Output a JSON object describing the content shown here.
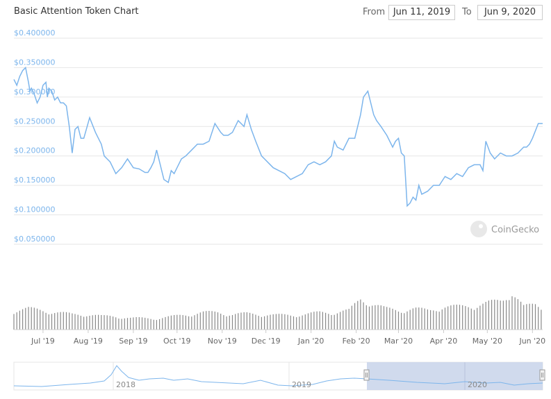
{
  "header": {
    "title": "Basic Attention Token Chart",
    "from_label": "From",
    "from_value": "Jun 11, 2019",
    "to_label": "To",
    "to_value": "Jun 9, 2020"
  },
  "watermark": {
    "text": "CoinGecko",
    "icon": "gecko-logo-icon"
  },
  "colors": {
    "line": "#7cb5ec",
    "volume": "#888888",
    "grid": "#e6e6e6",
    "navigator_mask": "#c8d3ea"
  },
  "chart_data": {
    "type": "line",
    "title": "Basic Attention Token Chart",
    "x_range": [
      "Jun 11, 2019",
      "Jun 9, 2020"
    ],
    "ylim": [
      0.05,
      0.4
    ],
    "y_ticks": [
      "$0.400000",
      "$0.350000",
      "$0.300000",
      "$0.250000",
      "$0.200000",
      "$0.150000",
      "$0.100000",
      "$0.050000"
    ],
    "y_tick_values": [
      0.4,
      0.35,
      0.3,
      0.25,
      0.2,
      0.15,
      0.1,
      0.05
    ],
    "x_ticks": [
      "Jul '19",
      "Aug '19",
      "Sep '19",
      "Oct '19",
      "Nov '19",
      "Dec '19",
      "Jan '20",
      "Feb '20",
      "Mar '20",
      "Apr '20",
      "May '20",
      "Jun '20"
    ],
    "x_tick_days": [
      20,
      51,
      82,
      112,
      143,
      173,
      204,
      235,
      264,
      295,
      325,
      356
    ],
    "grid": true,
    "series": [
      {
        "day": [
          0,
          2,
          4,
          6,
          8,
          10,
          11,
          12,
          14,
          16,
          18,
          20,
          22,
          23,
          24,
          26,
          28,
          30,
          32,
          34,
          36,
          38,
          40,
          42,
          44,
          46,
          48,
          52,
          56,
          58,
          60,
          62,
          64,
          66,
          70,
          74,
          78,
          82,
          86,
          90,
          92,
          94,
          96,
          98,
          100,
          103,
          106,
          108,
          110,
          112,
          115,
          118,
          122,
          126,
          130,
          134,
          138,
          142,
          144,
          147,
          150,
          154,
          158,
          160,
          163,
          166,
          170,
          174,
          178,
          182,
          186,
          190,
          194,
          198,
          202,
          206,
          210,
          214,
          218,
          220,
          222,
          226,
          230,
          234,
          238,
          240,
          243,
          245,
          247,
          249,
          252,
          256,
          260,
          262,
          264,
          266,
          268,
          270,
          272,
          274,
          276,
          278,
          280,
          284,
          288,
          292,
          296,
          300,
          304,
          308,
          312,
          316,
          320,
          322,
          324,
          327,
          330,
          334,
          338,
          342,
          346,
          350,
          352,
          354,
          356,
          360,
          363
        ],
        "values": [
          0.33,
          0.32,
          0.335,
          0.345,
          0.35,
          0.325,
          0.31,
          0.315,
          0.305,
          0.29,
          0.3,
          0.32,
          0.325,
          0.3,
          0.315,
          0.31,
          0.295,
          0.3,
          0.29,
          0.29,
          0.285,
          0.25,
          0.205,
          0.245,
          0.25,
          0.23,
          0.23,
          0.265,
          0.24,
          0.23,
          0.22,
          0.2,
          0.195,
          0.19,
          0.17,
          0.18,
          0.195,
          0.18,
          0.178,
          0.172,
          0.172,
          0.18,
          0.19,
          0.21,
          0.19,
          0.16,
          0.155,
          0.175,
          0.17,
          0.18,
          0.195,
          0.2,
          0.21,
          0.22,
          0.22,
          0.225,
          0.255,
          0.24,
          0.235,
          0.235,
          0.24,
          0.26,
          0.25,
          0.27,
          0.245,
          0.225,
          0.2,
          0.19,
          0.18,
          0.175,
          0.17,
          0.16,
          0.165,
          0.17,
          0.185,
          0.19,
          0.185,
          0.19,
          0.2,
          0.225,
          0.215,
          0.21,
          0.23,
          0.23,
          0.27,
          0.3,
          0.31,
          0.29,
          0.27,
          0.26,
          0.25,
          0.235,
          0.215,
          0.225,
          0.23,
          0.205,
          0.2,
          0.115,
          0.12,
          0.13,
          0.125,
          0.15,
          0.135,
          0.14,
          0.15,
          0.15,
          0.165,
          0.16,
          0.17,
          0.165,
          0.18,
          0.185,
          0.185,
          0.175,
          0.225,
          0.205,
          0.195,
          0.205,
          0.2,
          0.2,
          0.205,
          0.215,
          0.215,
          0.22,
          0.23,
          0.255,
          0.255
        ]
      }
    ],
    "volume": {
      "day": [
        0,
        10,
        20,
        30,
        40,
        50,
        60,
        70,
        80,
        90,
        100,
        110,
        120,
        130,
        140,
        150,
        160,
        170,
        180,
        190,
        200,
        210,
        220,
        230,
        238,
        245,
        255,
        265,
        275,
        285,
        295,
        305,
        315,
        325,
        335,
        342,
        350,
        358,
        363
      ],
      "values": [
        0.5,
        0.55,
        0.5,
        0.45,
        0.4,
        0.4,
        0.35,
        0.35,
        0.3,
        0.3,
        0.3,
        0.35,
        0.4,
        0.45,
        0.45,
        0.4,
        0.42,
        0.4,
        0.38,
        0.38,
        0.4,
        0.45,
        0.45,
        0.5,
        0.8,
        0.7,
        0.55,
        0.5,
        0.55,
        0.5,
        0.6,
        0.6,
        0.62,
        0.7,
        0.75,
        1.0,
        0.6,
        0.65,
        0.55
      ]
    },
    "navigator": {
      "x_ticks": [
        "2018",
        "2019",
        "2020"
      ],
      "selected_range": [
        "Jun 11, 2019",
        "Jun 9, 2020"
      ]
    }
  }
}
